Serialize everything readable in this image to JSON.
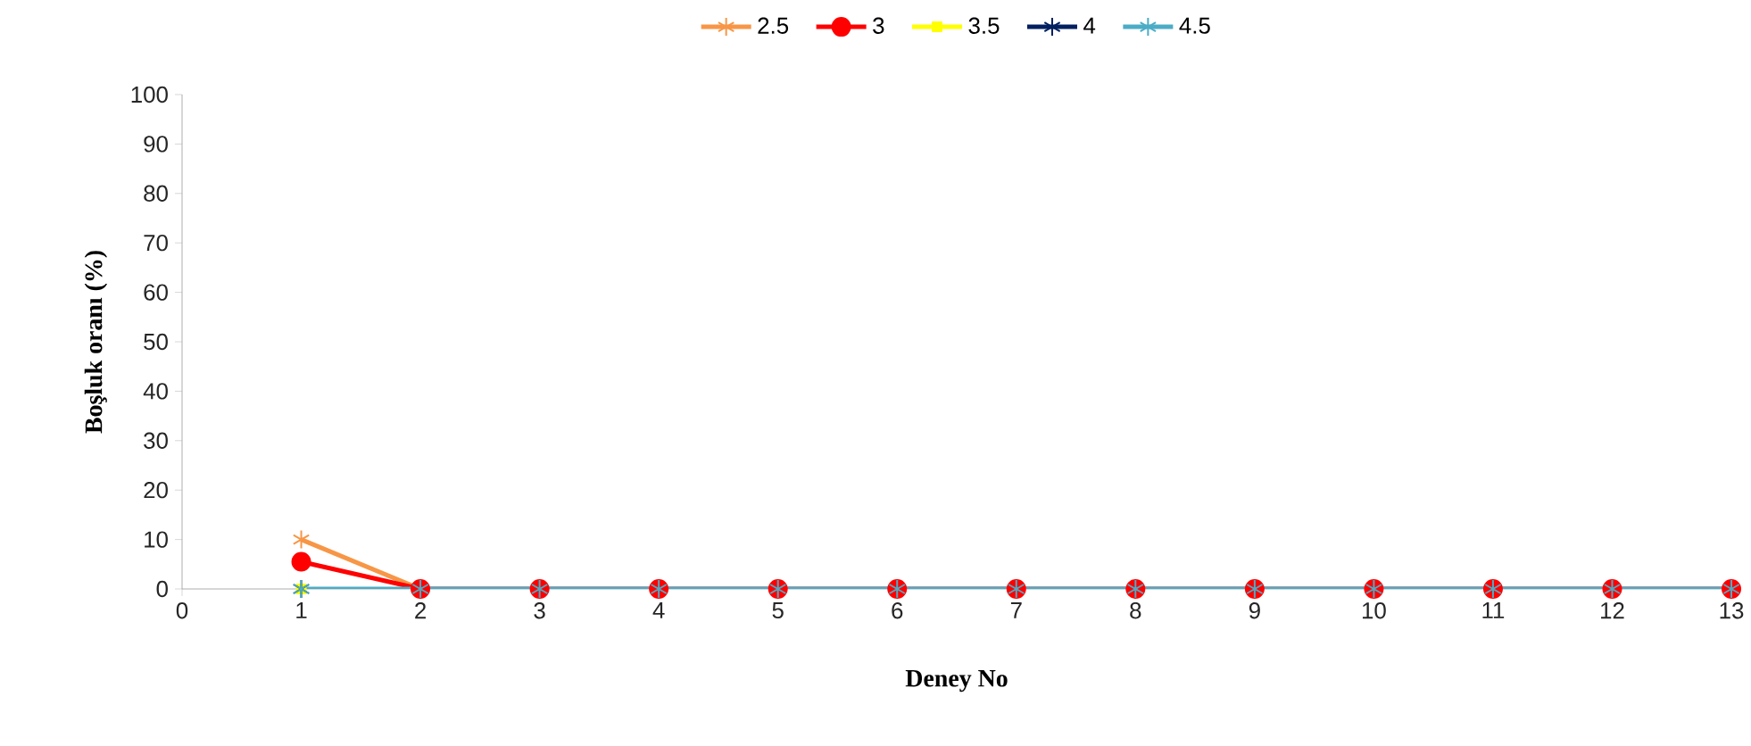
{
  "chart_data": {
    "type": "line",
    "xlabel": "Deney No",
    "ylabel": "Boşluk oranı (%)",
    "xlim": [
      0,
      13
    ],
    "xticks": [
      0,
      1,
      2,
      3,
      4,
      5,
      6,
      7,
      8,
      9,
      10,
      11,
      12,
      13
    ],
    "ylim": [
      0,
      100
    ],
    "yticks": [
      0,
      10,
      20,
      30,
      40,
      50,
      60,
      70,
      80,
      90,
      100
    ],
    "legend": "top",
    "grid": false,
    "series": [
      {
        "name": "2.5",
        "color": "#f79646",
        "marker": "cross",
        "x": [
          1,
          2
        ],
        "values": [
          10,
          0
        ]
      },
      {
        "name": "3",
        "color": "#ff0000",
        "marker": "circle",
        "x": [
          1,
          2,
          3,
          4,
          5,
          6,
          7,
          8,
          9,
          10,
          11,
          12,
          13
        ],
        "values": [
          5.5,
          0,
          0,
          0,
          0,
          0,
          0,
          0,
          0,
          0,
          0,
          0,
          0
        ]
      },
      {
        "name": "3.5",
        "color": "#ffff00",
        "marker": "square",
        "x": [
          1
        ],
        "values": [
          0
        ]
      },
      {
        "name": "4",
        "color": "#002060",
        "marker": "cross",
        "x": [
          1
        ],
        "values": [
          0
        ]
      },
      {
        "name": "4.5",
        "color": "#4bacc6",
        "marker": "cross",
        "x": [
          1,
          2,
          3,
          4,
          5,
          6,
          7,
          8,
          9,
          10,
          11,
          12,
          13
        ],
        "values": [
          0,
          0,
          0,
          0,
          0,
          0,
          0,
          0,
          0,
          0,
          0,
          0,
          0
        ]
      }
    ]
  }
}
